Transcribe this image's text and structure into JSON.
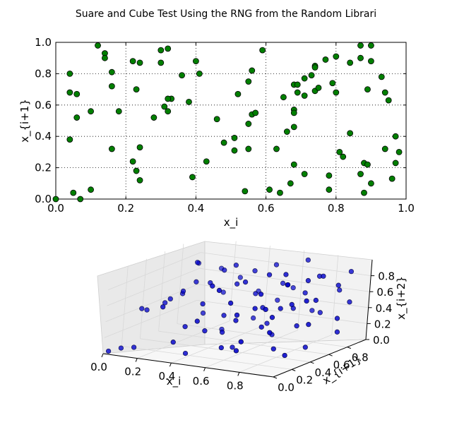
{
  "chart_data": [
    {
      "type": "scatter",
      "title": "Suare and Cube Test Using the RNG from the Random Librari",
      "xlabel": "x_i",
      "ylabel": "x_{i+1}",
      "xlim": [
        0,
        1
      ],
      "ylim": [
        0,
        1
      ],
      "grid": true,
      "marker_color": "#007f00",
      "x_ticks": [
        "0.0",
        "0.2",
        "0.4",
        "0.6",
        "0.8",
        "1.0"
      ],
      "y_ticks": [
        "0.0",
        "0.2",
        "0.4",
        "0.6",
        "0.8",
        "1.0"
      ],
      "points": [
        [
          0.0,
          0.0
        ],
        [
          0.04,
          0.8
        ],
        [
          0.04,
          0.68
        ],
        [
          0.04,
          0.38
        ],
        [
          0.05,
          0.04
        ],
        [
          0.06,
          0.67
        ],
        [
          0.06,
          0.52
        ],
        [
          0.07,
          0.0
        ],
        [
          0.1,
          0.56
        ],
        [
          0.1,
          0.06
        ],
        [
          0.12,
          0.98
        ],
        [
          0.14,
          0.93
        ],
        [
          0.14,
          0.9
        ],
        [
          0.16,
          0.72
        ],
        [
          0.16,
          0.81
        ],
        [
          0.16,
          0.32
        ],
        [
          0.18,
          0.56
        ],
        [
          0.22,
          0.88
        ],
        [
          0.22,
          0.24
        ],
        [
          0.23,
          0.7
        ],
        [
          0.23,
          0.18
        ],
        [
          0.24,
          0.87
        ],
        [
          0.24,
          0.33
        ],
        [
          0.24,
          0.12
        ],
        [
          0.28,
          0.52
        ],
        [
          0.3,
          0.95
        ],
        [
          0.3,
          0.87
        ],
        [
          0.31,
          0.59
        ],
        [
          0.32,
          0.96
        ],
        [
          0.32,
          0.56
        ],
        [
          0.33,
          0.64
        ],
        [
          0.32,
          0.64
        ],
        [
          0.36,
          0.79
        ],
        [
          0.38,
          0.62
        ],
        [
          0.39,
          0.14
        ],
        [
          0.4,
          0.88
        ],
        [
          0.41,
          0.8
        ],
        [
          0.43,
          0.24
        ],
        [
          0.46,
          0.51
        ],
        [
          0.48,
          0.36
        ],
        [
          0.51,
          0.31
        ],
        [
          0.51,
          0.39
        ],
        [
          0.52,
          0.67
        ],
        [
          0.54,
          0.05
        ],
        [
          0.55,
          0.75
        ],
        [
          0.55,
          0.48
        ],
        [
          0.55,
          0.32
        ],
        [
          0.56,
          0.54
        ],
        [
          0.56,
          0.82
        ],
        [
          0.57,
          0.55
        ],
        [
          0.59,
          0.95
        ],
        [
          0.61,
          0.06
        ],
        [
          0.63,
          0.32
        ],
        [
          0.64,
          0.04
        ],
        [
          0.65,
          0.65
        ],
        [
          0.66,
          0.43
        ],
        [
          0.67,
          0.1
        ],
        [
          0.68,
          0.46
        ],
        [
          0.68,
          0.57
        ],
        [
          0.68,
          0.55
        ],
        [
          0.68,
          0.22
        ],
        [
          0.68,
          0.73
        ],
        [
          0.69,
          0.73
        ],
        [
          0.69,
          0.68
        ],
        [
          0.71,
          0.77
        ],
        [
          0.71,
          0.66
        ],
        [
          0.71,
          0.16
        ],
        [
          0.73,
          0.79
        ],
        [
          0.74,
          0.85
        ],
        [
          0.74,
          0.84
        ],
        [
          0.74,
          0.69
        ],
        [
          0.75,
          0.71
        ],
        [
          0.77,
          0.89
        ],
        [
          0.78,
          0.06
        ],
        [
          0.78,
          0.15
        ],
        [
          0.79,
          0.74
        ],
        [
          0.8,
          0.91
        ],
        [
          0.8,
          0.68
        ],
        [
          0.81,
          0.3
        ],
        [
          0.82,
          0.27
        ],
        [
          0.84,
          0.87
        ],
        [
          0.84,
          0.42
        ],
        [
          0.87,
          0.16
        ],
        [
          0.87,
          0.9
        ],
        [
          0.87,
          0.98
        ],
        [
          0.88,
          0.23
        ],
        [
          0.88,
          0.04
        ],
        [
          0.89,
          0.22
        ],
        [
          0.89,
          0.7
        ],
        [
          0.9,
          0.98
        ],
        [
          0.9,
          0.88
        ],
        [
          0.9,
          0.1
        ],
        [
          0.93,
          0.78
        ],
        [
          0.94,
          0.68
        ],
        [
          0.94,
          0.32
        ],
        [
          0.95,
          0.63
        ],
        [
          0.96,
          0.13
        ],
        [
          0.97,
          0.4
        ],
        [
          0.97,
          0.23
        ],
        [
          0.98,
          0.3
        ]
      ]
    },
    {
      "type": "scatter3d",
      "xlabel": "x_i",
      "ylabel": "x_{i+1}",
      "zlabel": "x_{i+2}",
      "xlim": [
        0,
        1
      ],
      "ylim": [
        0,
        1
      ],
      "zlim": [
        0,
        1
      ],
      "marker_color": "#0000cc",
      "x_ticks": [
        "0.0",
        "0.2",
        "0.4",
        "0.6",
        "0.8"
      ],
      "y_ticks": [
        "0.0",
        "0.2",
        "0.4",
        "0.6",
        "0.8"
      ],
      "z_ticks": [
        "0.0",
        "0.2",
        "0.4",
        "0.6",
        "0.8"
      ],
      "points": [
        [
          0.03,
          0.0,
          0.04
        ],
        [
          0.06,
          0.08,
          0.05
        ],
        [
          0.1,
          0.2,
          0.5
        ],
        [
          0.12,
          0.22,
          0.48
        ],
        [
          0.18,
          0.3,
          0.55
        ],
        [
          0.22,
          0.28,
          0.62
        ],
        [
          0.26,
          0.34,
          0.7
        ],
        [
          0.2,
          0.45,
          0.6
        ],
        [
          0.15,
          0.05,
          0.1
        ],
        [
          0.35,
          0.1,
          0.2
        ],
        [
          0.4,
          0.15,
          0.05
        ],
        [
          0.45,
          0.25,
          0.3
        ],
        [
          0.3,
          0.4,
          0.8
        ],
        [
          0.33,
          0.5,
          0.75
        ],
        [
          0.38,
          0.55,
          0.9
        ],
        [
          0.42,
          0.6,
          0.95
        ],
        [
          0.45,
          0.45,
          0.4
        ],
        [
          0.48,
          0.7,
          0.85
        ],
        [
          0.5,
          0.35,
          0.25
        ],
        [
          0.52,
          0.65,
          0.6
        ],
        [
          0.55,
          0.8,
          0.9
        ],
        [
          0.58,
          0.2,
          0.15
        ],
        [
          0.6,
          0.3,
          0.45
        ],
        [
          0.62,
          0.55,
          0.5
        ],
        [
          0.65,
          0.75,
          0.7
        ],
        [
          0.68,
          0.9,
          0.95
        ],
        [
          0.7,
          0.4,
          0.35
        ],
        [
          0.72,
          0.1,
          0.2
        ],
        [
          0.75,
          0.5,
          0.55
        ],
        [
          0.78,
          0.85,
          0.8
        ],
        [
          0.8,
          0.6,
          0.3
        ],
        [
          0.82,
          0.2,
          0.7
        ],
        [
          0.85,
          0.95,
          0.6
        ],
        [
          0.88,
          0.7,
          0.9
        ],
        [
          0.9,
          0.3,
          0.1
        ],
        [
          0.92,
          0.5,
          0.4
        ],
        [
          0.25,
          0.6,
          0.3
        ],
        [
          0.28,
          0.75,
          0.5
        ],
        [
          0.32,
          0.85,
          0.65
        ],
        [
          0.36,
          0.2,
          0.35
        ],
        [
          0.4,
          0.3,
          0.6
        ],
        [
          0.44,
          0.8,
          0.2
        ],
        [
          0.48,
          0.1,
          0.5
        ],
        [
          0.52,
          0.9,
          0.4
        ],
        [
          0.56,
          0.45,
          0.85
        ],
        [
          0.6,
          0.65,
          0.25
        ],
        [
          0.64,
          0.15,
          0.75
        ],
        [
          0.68,
          0.35,
          0.6
        ],
        [
          0.72,
          0.7,
          0.45
        ],
        [
          0.76,
          0.25,
          0.85
        ],
        [
          0.8,
          0.85,
          0.35
        ],
        [
          0.84,
          0.45,
          0.65
        ],
        [
          0.88,
          0.15,
          0.45
        ],
        [
          0.92,
          0.8,
          0.75
        ],
        [
          0.15,
          0.7,
          0.85
        ],
        [
          0.18,
          0.9,
          0.7
        ],
        [
          0.22,
          0.55,
          0.95
        ],
        [
          0.58,
          0.95,
          0.55
        ],
        [
          0.62,
          0.05,
          0.95
        ],
        [
          0.66,
          0.6,
          0.15
        ],
        [
          0.7,
          0.95,
          0.3
        ],
        [
          0.74,
          0.55,
          0.95
        ],
        [
          0.78,
          0.4,
          0.1
        ],
        [
          0.82,
          0.65,
          0.85
        ],
        [
          0.86,
          0.35,
          0.95
        ],
        [
          0.9,
          0.6,
          0.65
        ],
        [
          0.94,
          0.9,
          0.5
        ],
        [
          0.96,
          0.75,
          0.2
        ],
        [
          0.3,
          0.05,
          0.65
        ],
        [
          0.34,
          0.65,
          0.1
        ],
        [
          0.38,
          0.95,
          0.45
        ],
        [
          0.46,
          0.55,
          0.75
        ],
        [
          0.5,
          0.2,
          0.9
        ],
        [
          0.54,
          0.4,
          0.05
        ],
        [
          0.57,
          0.85,
          0.65
        ],
        [
          0.63,
          0.25,
          0.55
        ],
        [
          0.67,
          0.5,
          0.95
        ],
        [
          0.73,
          0.8,
          0.6
        ],
        [
          0.77,
          0.05,
          0.35
        ],
        [
          0.81,
          0.3,
          0.55
        ],
        [
          0.86,
          0.6,
          0.05
        ],
        [
          0.91,
          0.95,
          0.85
        ],
        [
          0.95,
          0.4,
          0.75
        ],
        [
          0.98,
          0.7,
          0.4
        ]
      ]
    }
  ]
}
